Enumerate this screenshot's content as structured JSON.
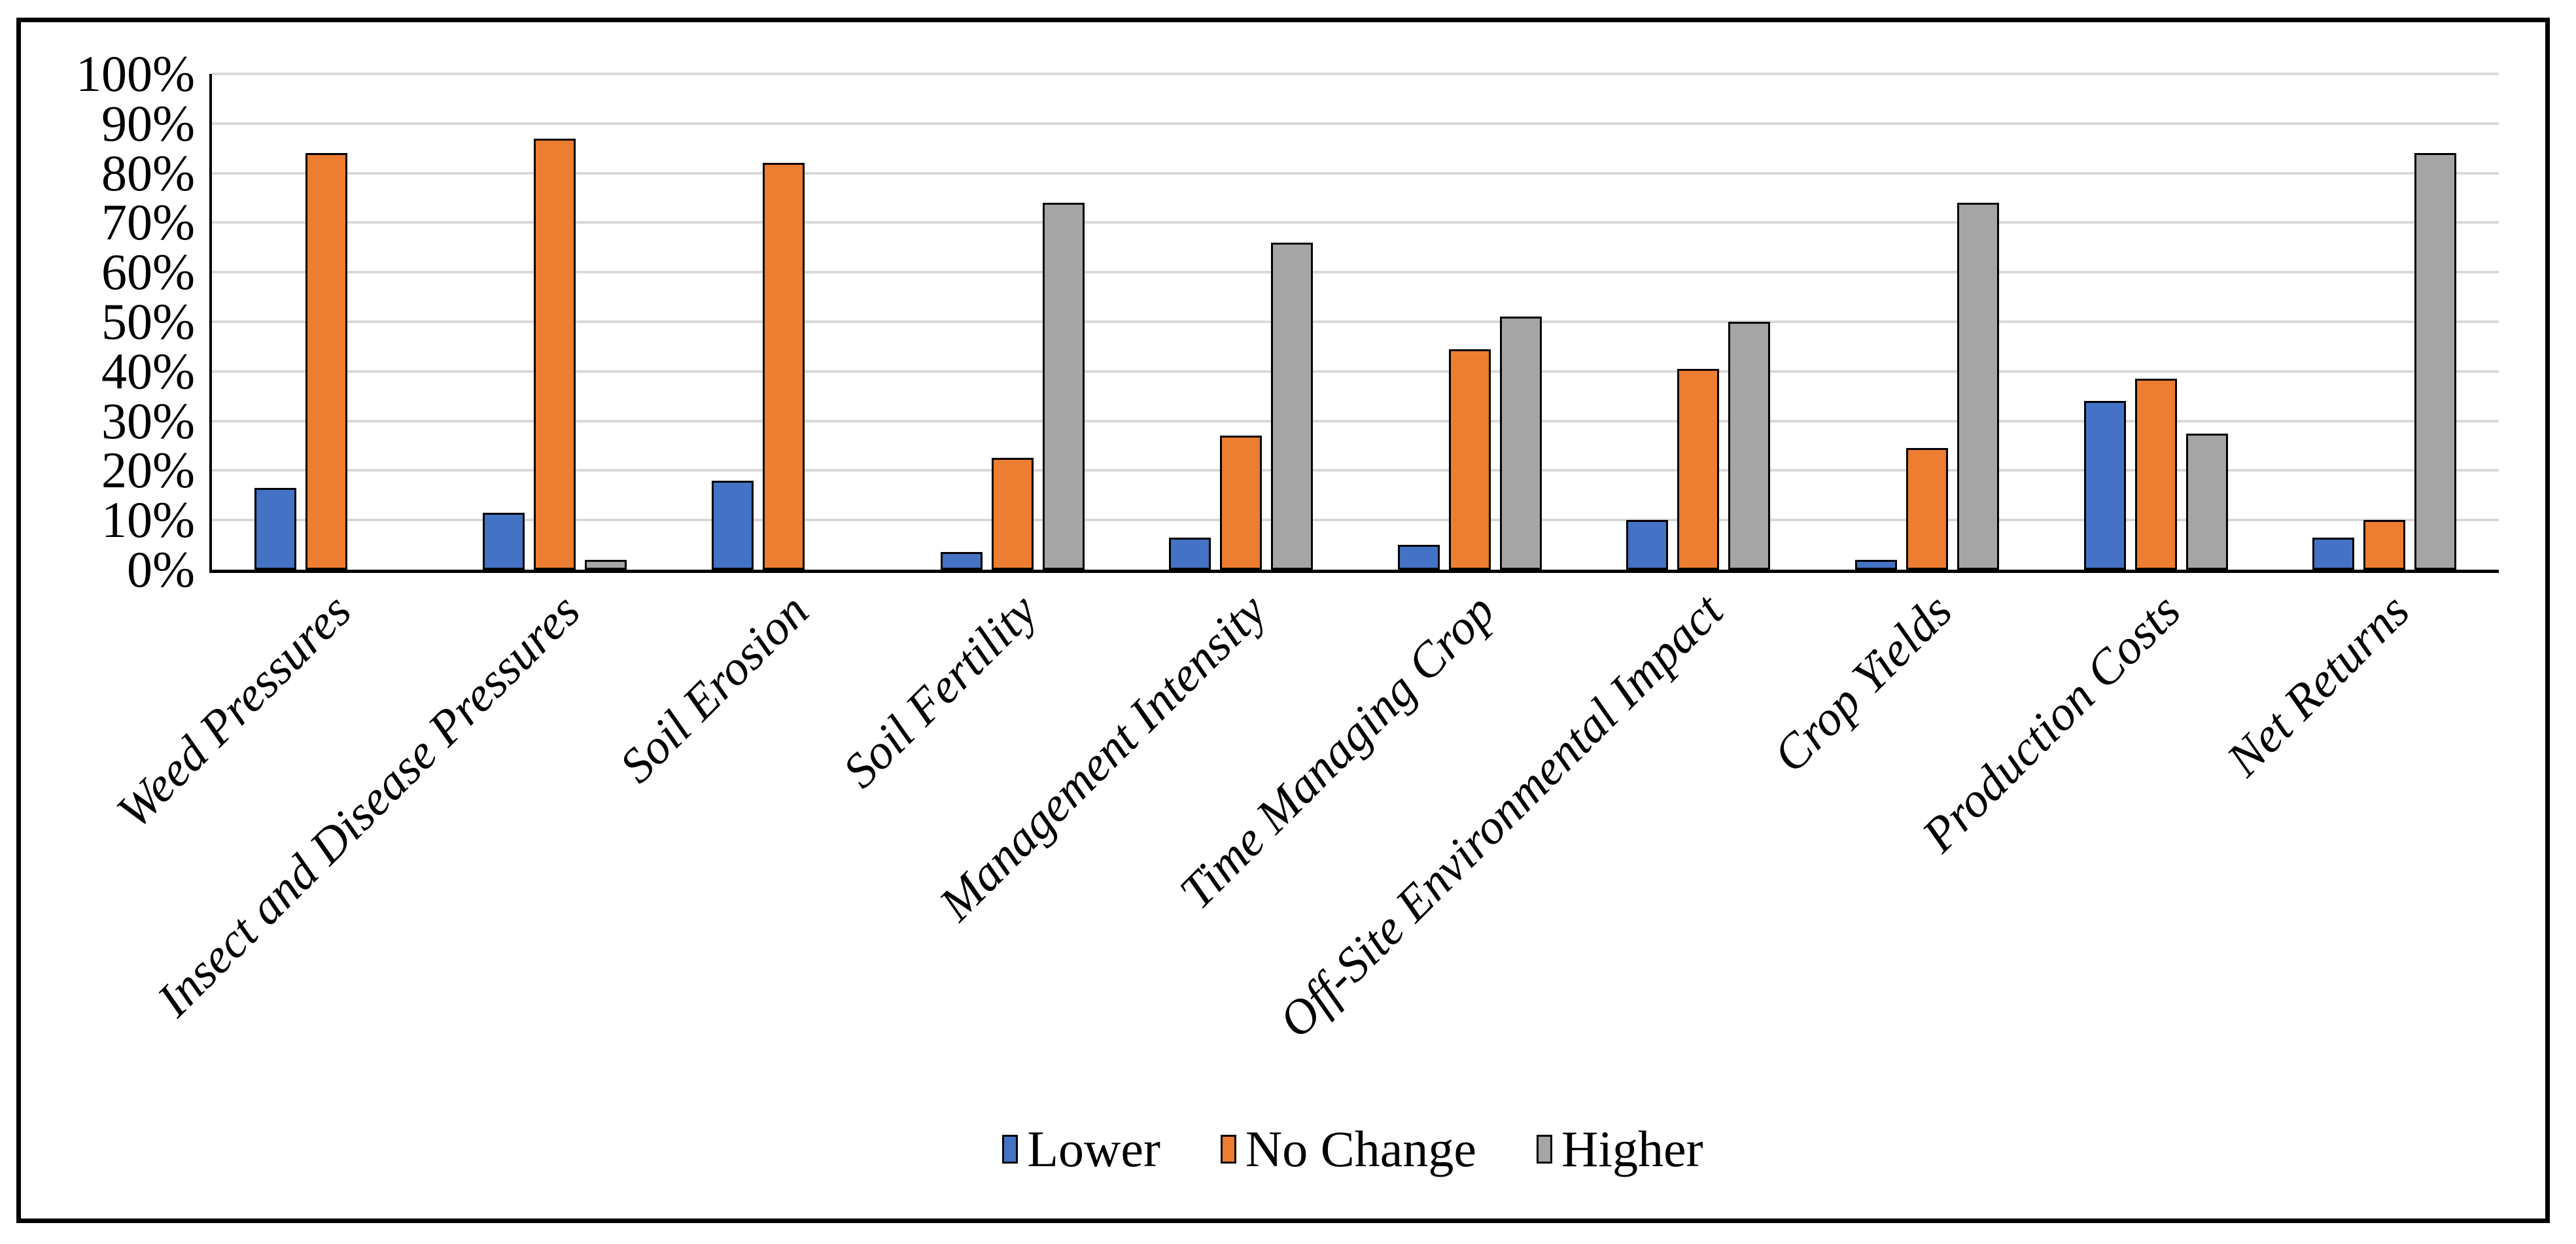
{
  "figure": {
    "background": "#FFFFFF",
    "frame_border_color": "#000000",
    "axis_color": "#000000"
  },
  "chart_data": {
    "type": "bar",
    "title": "",
    "xlabel": "",
    "ylabel": "",
    "categories": [
      "Weed Pressures",
      "Insect and Disease Pressures",
      "Soil Erosion",
      "Soil Fertility",
      "Management Intensity",
      "Time Managing Crop",
      "Off-Site Environmental Impact",
      "Crop Yields",
      "Production Costs",
      "Net Returns"
    ],
    "series": [
      {
        "name": "Lower",
        "color": "#4472C4",
        "values": [
          16.5,
          11.5,
          18,
          3.5,
          6.5,
          5,
          10,
          2,
          34,
          6.5
        ]
      },
      {
        "name": "No Change",
        "color": "#ED7D31",
        "values": [
          84,
          87,
          82,
          22.5,
          27,
          44.5,
          40.5,
          24.5,
          38.5,
          10
        ]
      },
      {
        "name": "Higher",
        "color": "#A5A5A5",
        "values": [
          0,
          2,
          0,
          74,
          66,
          51,
          50,
          74,
          27.5,
          84
        ]
      }
    ],
    "ylim": [
      0,
      100
    ],
    "y_ticks": [
      "100%",
      "90%",
      "80%",
      "70%",
      "60%",
      "50%",
      "40%",
      "30%",
      "20%",
      "10%",
      "0%"
    ],
    "grid": true,
    "gridline_color": "#D9D9D9",
    "legend_position": "bottom",
    "x_label_rotation_deg": 45
  }
}
